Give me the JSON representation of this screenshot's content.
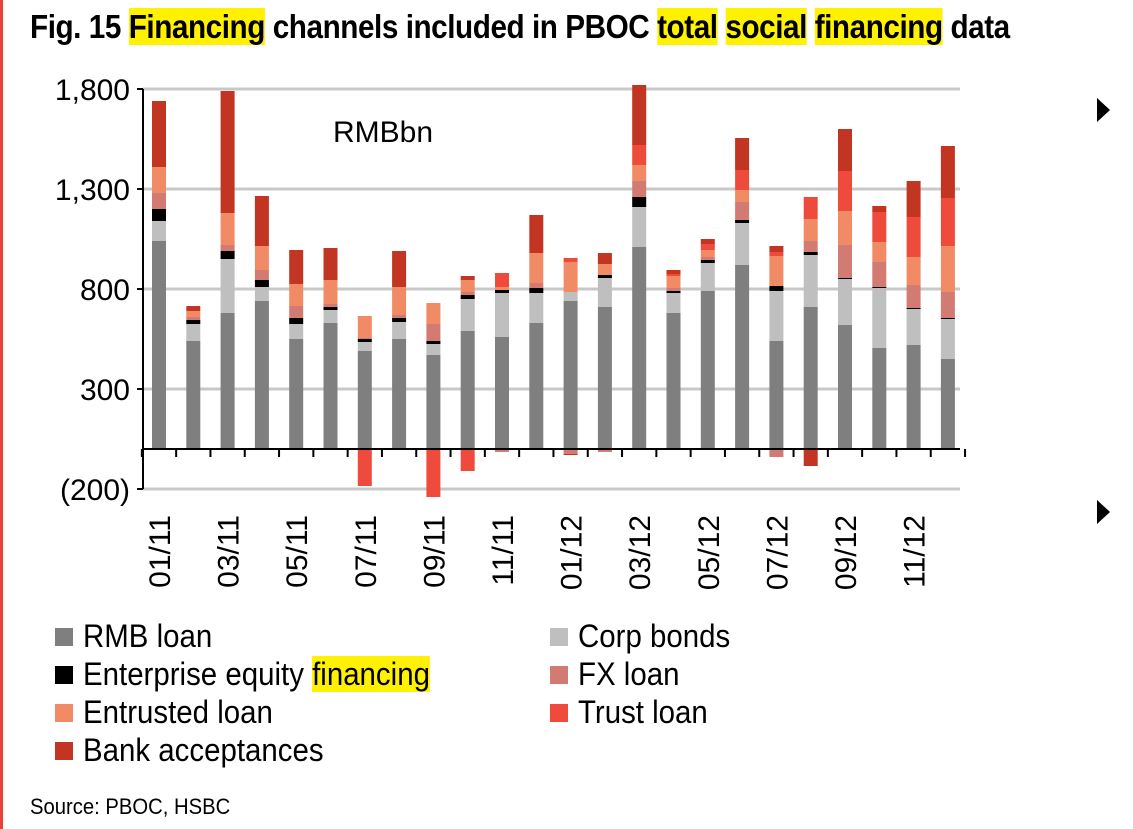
{
  "title": {
    "prefix": "Fig. 15 ",
    "w1": "Financing",
    "mid1": " channels included in PBOC ",
    "w2": "total",
    "w3": "social",
    "w4": "financing",
    "suffix": " data"
  },
  "source": "Source: PBOC, HSBC",
  "colors": {
    "RMB loan": "#7f7f7f",
    "Corp bonds": "#bfbfbf",
    "Enterprise equity financing": "#000000",
    "FX loan": "#d27b72",
    "Entrusted loan": "#f08b65",
    "Trust loan": "#ee4b3c",
    "Bank acceptances": "#c33523"
  },
  "legend": [
    {
      "label": "RMB loan"
    },
    {
      "label": "Corp bonds"
    },
    {
      "label_pre": "Enterprise equity ",
      "label_hl": "financing"
    },
    {
      "label": "FX loan"
    },
    {
      "label": "Entrusted loan"
    },
    {
      "label": "Trust loan"
    },
    {
      "label": "Bank acceptances"
    }
  ],
  "chart_data": {
    "type": "bar",
    "stacked": true,
    "annotation": "RMBbn",
    "ylim": [
      -200,
      1800
    ],
    "yticks": [
      -200,
      300,
      800,
      1300,
      1800
    ],
    "ytick_labels": [
      "(200)",
      "300",
      "800",
      "1,300",
      "1,800"
    ],
    "grid": true,
    "categories": [
      "01/11",
      "02/11",
      "03/11",
      "04/11",
      "05/11",
      "06/11",
      "07/11",
      "08/11",
      "09/11",
      "10/11",
      "11/11",
      "12/11",
      "01/12",
      "02/12",
      "03/12",
      "04/12",
      "05/12",
      "06/12",
      "07/12",
      "08/12",
      "09/12",
      "10/12",
      "11/12",
      "12/12"
    ],
    "tick_labels": [
      "01/11",
      "",
      "03/11",
      "",
      "05/11",
      "",
      "07/11",
      "",
      "09/11",
      "",
      "11/11",
      "",
      "01/12",
      "",
      "03/12",
      "",
      "05/12",
      "",
      "07/12",
      "",
      "09/12",
      "",
      "11/12",
      ""
    ],
    "series": [
      {
        "name": "RMB loan",
        "values": [
          1040,
          540,
          680,
          740,
          550,
          630,
          490,
          550,
          470,
          590,
          560,
          630,
          740,
          710,
          1010,
          680,
          790,
          920,
          540,
          710,
          620,
          505,
          520,
          450
        ]
      },
      {
        "name": "Corp bonds",
        "values": [
          100,
          85,
          270,
          70,
          75,
          65,
          45,
          85,
          55,
          160,
          220,
          150,
          45,
          145,
          200,
          100,
          140,
          210,
          250,
          260,
          230,
          300,
          180,
          200
        ]
      },
      {
        "name": "Enterprise equity financing",
        "values": [
          60,
          20,
          40,
          35,
          30,
          15,
          15,
          20,
          15,
          20,
          15,
          25,
          0,
          15,
          50,
          10,
          15,
          15,
          25,
          15,
          5,
          5,
          5,
          5
        ]
      },
      {
        "name": "FX loan",
        "values": [
          80,
          15,
          30,
          50,
          60,
          15,
          5,
          15,
          85,
          15,
          -15,
          25,
          -25,
          -15,
          80,
          15,
          15,
          90,
          -40,
          55,
          165,
          125,
          115,
          130
        ]
      },
      {
        "name": "Entrusted loan",
        "values": [
          130,
          30,
          160,
          120,
          110,
          120,
          110,
          140,
          105,
          60,
          15,
          150,
          150,
          55,
          80,
          60,
          35,
          60,
          150,
          110,
          170,
          100,
          140,
          230
        ]
      },
      {
        "name": "Trust loan",
        "values": [
          0,
          0,
          0,
          0,
          0,
          0,
          -185,
          0,
          -240,
          -110,
          70,
          0,
          20,
          0,
          100,
          10,
          30,
          100,
          20,
          110,
          200,
          150,
          200,
          240
        ]
      },
      {
        "name": "Bank acceptances",
        "values": [
          330,
          25,
          610,
          250,
          170,
          160,
          0,
          180,
          0,
          20,
          0,
          190,
          -5,
          55,
          300,
          20,
          25,
          160,
          30,
          -85,
          210,
          30,
          180,
          260
        ]
      }
    ]
  }
}
